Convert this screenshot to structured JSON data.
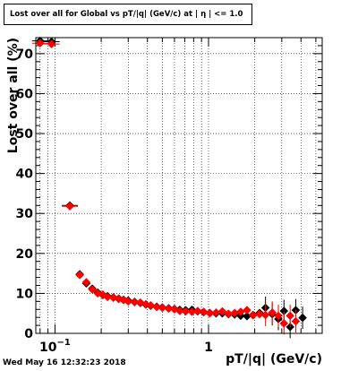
{
  "title": "Lost over all for Global vs pT/|q| (GeV/c) at |  η | <= 1.0",
  "footer": "Wed May 16 12:32:23 2018",
  "chart_data": {
    "type": "scatter",
    "title": "Lost over all for Global vs pT/|q| (GeV/c) at |  η | <= 1.0",
    "xlabel": "pT/|q| (GeV/c)",
    "ylabel": "Lost over all (%)",
    "xscale": "log",
    "xlim": [
      0.075,
      5.5
    ],
    "ylim": [
      0,
      74
    ],
    "grid": true,
    "xticks": [
      {
        "value": 0.1,
        "base": "10",
        "exp": "−1"
      },
      {
        "value": 1,
        "label": "1"
      }
    ],
    "yticks": [
      0,
      10,
      20,
      30,
      40,
      50,
      60,
      70
    ],
    "series": [
      {
        "color": "#000000",
        "marker": "diamond",
        "points": [
          [
            0.08,
            73.2
          ],
          [
            0.095,
            73.0
          ],
          [
            0.125,
            32.0
          ],
          [
            0.145,
            14.8
          ],
          [
            0.16,
            12.5
          ],
          [
            0.175,
            11.2
          ],
          [
            0.19,
            10.2
          ],
          [
            0.205,
            9.6
          ],
          [
            0.22,
            9.3
          ],
          [
            0.24,
            9.0
          ],
          [
            0.26,
            8.7
          ],
          [
            0.28,
            8.4
          ],
          [
            0.3,
            8.2
          ],
          [
            0.33,
            7.9
          ],
          [
            0.36,
            7.6
          ],
          [
            0.39,
            7.2
          ],
          [
            0.42,
            6.9
          ],
          [
            0.46,
            6.7
          ],
          [
            0.5,
            6.5
          ],
          [
            0.55,
            6.3
          ],
          [
            0.6,
            6.1
          ],
          [
            0.65,
            5.9
          ],
          [
            0.71,
            5.8
          ],
          [
            0.78,
            5.9
          ],
          [
            0.85,
            5.5
          ],
          [
            0.93,
            5.3
          ],
          [
            1.02,
            5.1
          ],
          [
            1.12,
            5.0
          ],
          [
            1.23,
            5.0
          ],
          [
            1.35,
            4.8
          ],
          [
            1.48,
            4.7
          ],
          [
            1.62,
            4.4
          ],
          [
            1.78,
            4.3
          ],
          [
            1.95,
            4.6
          ],
          [
            2.15,
            5.1
          ],
          [
            2.35,
            6.4
          ],
          [
            2.6,
            4.8
          ],
          [
            2.85,
            3.6
          ],
          [
            3.1,
            5.6
          ],
          [
            3.4,
            1.6
          ],
          [
            3.7,
            5.8
          ],
          [
            4.1,
            3.9
          ]
        ]
      },
      {
        "color": "#ff0000",
        "marker": "diamond",
        "points": [
          [
            0.08,
            72.6
          ],
          [
            0.095,
            72.4
          ],
          [
            0.125,
            31.8
          ],
          [
            0.145,
            14.6
          ],
          [
            0.16,
            12.8
          ],
          [
            0.175,
            11.0
          ],
          [
            0.19,
            10.0
          ],
          [
            0.205,
            9.7
          ],
          [
            0.22,
            9.1
          ],
          [
            0.24,
            8.9
          ],
          [
            0.26,
            8.6
          ],
          [
            0.28,
            8.3
          ],
          [
            0.3,
            8.0
          ],
          [
            0.33,
            7.8
          ],
          [
            0.36,
            7.7
          ],
          [
            0.39,
            7.3
          ],
          [
            0.42,
            7.0
          ],
          [
            0.46,
            6.6
          ],
          [
            0.5,
            6.4
          ],
          [
            0.55,
            6.2
          ],
          [
            0.6,
            6.0
          ],
          [
            0.65,
            5.6
          ],
          [
            0.71,
            5.5
          ],
          [
            0.78,
            5.4
          ],
          [
            0.85,
            5.6
          ],
          [
            0.93,
            5.4
          ],
          [
            1.02,
            5.0
          ],
          [
            1.12,
            5.2
          ],
          [
            1.23,
            5.5
          ],
          [
            1.35,
            4.9
          ],
          [
            1.48,
            5.1
          ],
          [
            1.62,
            5.4
          ],
          [
            1.78,
            5.8
          ],
          [
            1.95,
            4.5
          ],
          [
            2.15,
            4.8
          ],
          [
            2.35,
            4.6
          ],
          [
            2.6,
            5.2
          ],
          [
            2.85,
            4.4
          ],
          [
            3.1,
            2.5
          ],
          [
            3.4,
            4.4
          ],
          [
            3.7,
            3.0
          ]
        ]
      }
    ]
  }
}
